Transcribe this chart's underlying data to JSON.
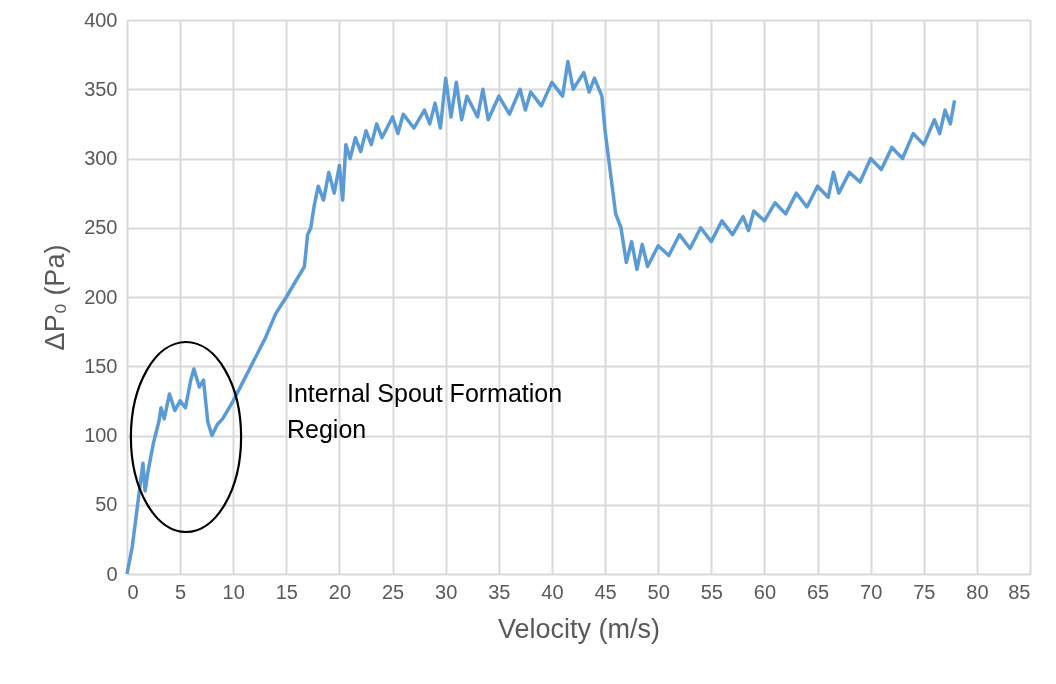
{
  "chart_data": {
    "type": "line",
    "xlabel": "Velocity (m/s)",
    "ylabel": "ΔP₀ (Pa)",
    "annotations": [
      "Internal Spout Formation Region"
    ],
    "xlim": [
      0,
      85
    ],
    "xticks": [
      0,
      5,
      10,
      15,
      20,
      25,
      30,
      35,
      40,
      45,
      50,
      55,
      60,
      65,
      70,
      75,
      80,
      85
    ],
    "ylim": [
      0,
      400
    ],
    "yticks": [
      0,
      50,
      100,
      150,
      200,
      250,
      300,
      350,
      400
    ],
    "grid": true,
    "marker": "none",
    "line_style": "solid",
    "x": [
      0,
      0.5,
      1,
      1.5,
      1.7,
      2,
      2.5,
      3,
      3.2,
      3.5,
      4,
      4.5,
      5,
      5.5,
      6,
      6.3,
      6.8,
      7.2,
      7.6,
      8,
      8.5,
      9,
      10,
      11,
      12,
      13,
      14,
      15,
      16,
      16.7,
      17,
      17.3,
      17.6,
      18,
      18.5,
      19,
      19.5,
      20,
      20.3,
      20.6,
      21,
      21.5,
      22,
      22.5,
      23,
      23.5,
      24,
      25,
      25.5,
      26,
      27,
      28,
      28.5,
      29,
      29.5,
      30,
      30.5,
      31,
      31.5,
      32,
      33,
      33.5,
      34,
      35,
      36,
      37,
      37.5,
      38,
      39,
      40,
      41,
      41.5,
      42,
      43,
      43.5,
      44,
      44.7,
      45,
      45.5,
      46,
      46.5,
      47,
      47.5,
      48,
      48.5,
      49,
      50,
      51,
      52,
      53,
      54,
      55,
      56,
      57,
      58,
      58.5,
      59,
      60,
      61,
      62,
      63,
      64,
      65,
      66,
      66.5,
      67,
      68,
      69,
      70,
      71,
      72,
      73,
      74,
      75,
      76,
      76.5,
      77,
      77.5,
      77.9
    ],
    "series": [
      {
        "color": "#5b9bd5",
        "values": [
          0,
          20,
          50,
          80,
          60,
          75,
          95,
          110,
          120,
          112,
          130,
          118,
          125,
          120,
          140,
          148,
          135,
          140,
          110,
          100,
          108,
          112,
          125,
          140,
          155,
          170,
          188,
          200,
          213,
          222,
          245,
          250,
          265,
          280,
          270,
          290,
          275,
          295,
          270,
          310,
          300,
          315,
          305,
          320,
          310,
          325,
          315,
          330,
          318,
          332,
          322,
          335,
          325,
          340,
          322,
          358,
          330,
          355,
          328,
          345,
          330,
          350,
          328,
          345,
          332,
          350,
          335,
          348,
          338,
          355,
          345,
          370,
          350,
          362,
          348,
          358,
          345,
          320,
          290,
          260,
          250,
          225,
          240,
          220,
          238,
          222,
          237,
          230,
          245,
          235,
          250,
          240,
          255,
          245,
          258,
          248,
          262,
          255,
          268,
          260,
          275,
          265,
          280,
          272,
          290,
          275,
          290,
          283,
          300,
          292,
          308,
          300,
          318,
          310,
          328,
          318,
          335,
          325,
          342
        ]
      }
    ]
  }
}
